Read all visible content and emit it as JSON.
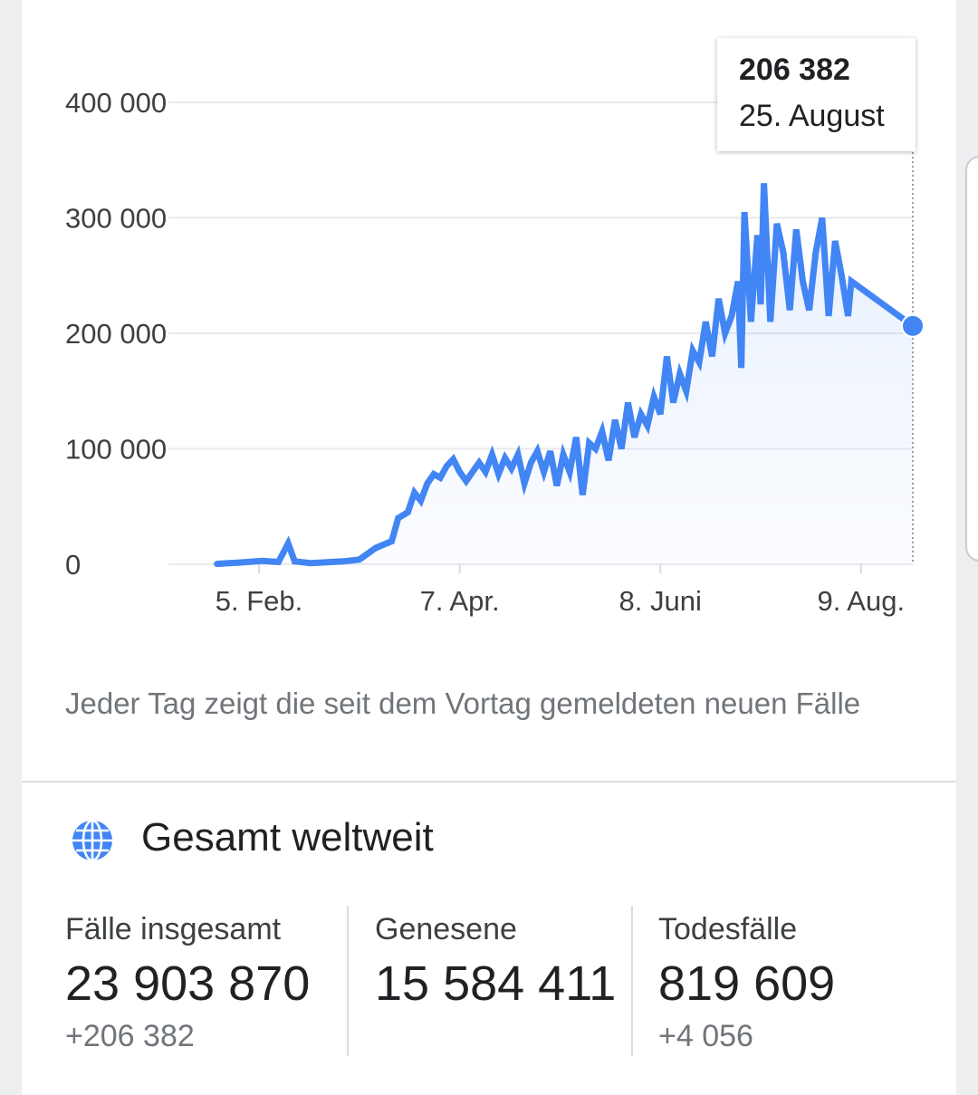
{
  "chart_data": {
    "type": "area",
    "y_ticks": [
      "400 000",
      "300 000",
      "200 000",
      "100 000",
      "0"
    ],
    "y_tick_values": [
      400000,
      300000,
      200000,
      100000,
      0
    ],
    "ylim": [
      0,
      400000
    ],
    "x_ticks": [
      "5. Feb.",
      "7. Apr.",
      "8. Juni",
      "9. Aug."
    ],
    "x_tick_dates": [
      "2020-02-05",
      "2020-04-07",
      "2020-06-08",
      "2020-08-09"
    ],
    "x_range": [
      "2020-01-22",
      "2020-08-25"
    ],
    "grid": true,
    "line_color": "#4285f4",
    "series": [
      {
        "values": [
          [
            1,
            300
          ],
          [
            8,
            1500
          ],
          [
            15,
            3000
          ],
          [
            20,
            2000
          ],
          [
            23,
            18000
          ],
          [
            25,
            2500
          ],
          [
            30,
            1000
          ],
          [
            40,
            2500
          ],
          [
            45,
            4000
          ],
          [
            50,
            14000
          ],
          [
            55,
            20000
          ],
          [
            57,
            40000
          ],
          [
            60,
            45000
          ],
          [
            62,
            62000
          ],
          [
            64,
            55000
          ],
          [
            66,
            70000
          ],
          [
            68,
            78000
          ],
          [
            70,
            75000
          ],
          [
            72,
            85000
          ],
          [
            74,
            91000
          ],
          [
            76,
            80000
          ],
          [
            78,
            72000
          ],
          [
            80,
            80000
          ],
          [
            82,
            88000
          ],
          [
            84,
            80000
          ],
          [
            86,
            95000
          ],
          [
            88,
            78000
          ],
          [
            90,
            92000
          ],
          [
            92,
            83000
          ],
          [
            94,
            95000
          ],
          [
            96,
            70000
          ],
          [
            98,
            88000
          ],
          [
            100,
            98000
          ],
          [
            102,
            80000
          ],
          [
            104,
            98000
          ],
          [
            106,
            68000
          ],
          [
            108,
            95000
          ],
          [
            110,
            80000
          ],
          [
            112,
            110000
          ],
          [
            114,
            60000
          ],
          [
            116,
            105000
          ],
          [
            118,
            100000
          ],
          [
            120,
            115000
          ],
          [
            122,
            90000
          ],
          [
            124,
            125000
          ],
          [
            126,
            100000
          ],
          [
            128,
            140000
          ],
          [
            130,
            110000
          ],
          [
            132,
            130000
          ],
          [
            134,
            120000
          ],
          [
            136,
            145000
          ],
          [
            138,
            130000
          ],
          [
            140,
            180000
          ],
          [
            142,
            140000
          ],
          [
            144,
            165000
          ],
          [
            146,
            150000
          ],
          [
            148,
            185000
          ],
          [
            150,
            175000
          ],
          [
            152,
            210000
          ],
          [
            154,
            180000
          ],
          [
            156,
            230000
          ],
          [
            158,
            200000
          ],
          [
            160,
            215000
          ],
          [
            162,
            245000
          ],
          [
            163,
            170000
          ],
          [
            164,
            305000
          ],
          [
            166,
            210000
          ],
          [
            168,
            285000
          ],
          [
            169,
            225000
          ],
          [
            170,
            330000
          ],
          [
            172,
            210000
          ],
          [
            174,
            295000
          ],
          [
            176,
            270000
          ],
          [
            178,
            220000
          ],
          [
            180,
            290000
          ],
          [
            182,
            245000
          ],
          [
            184,
            220000
          ],
          [
            186,
            270000
          ],
          [
            188,
            300000
          ],
          [
            190,
            215000
          ],
          [
            192,
            280000
          ],
          [
            194,
            250000
          ],
          [
            196,
            215000
          ],
          [
            197,
            245000
          ],
          [
            216,
            206382
          ]
        ]
      }
    ]
  },
  "tooltip": {
    "value": "206 382",
    "date": "25. August"
  },
  "note": "Jeder Tag zeigt die seit dem Vortag gemeldeten neuen Fälle",
  "summary": {
    "title": "Gesamt weltweit",
    "icon": "globe-icon",
    "stats": [
      {
        "label": "Fälle insgesamt",
        "value": "23 903 870",
        "change": "+206 382"
      },
      {
        "label": "Genesene",
        "value": "15 584 411",
        "change": ""
      },
      {
        "label": "Todesfälle",
        "value": "819 609",
        "change": "+4 056"
      }
    ]
  }
}
